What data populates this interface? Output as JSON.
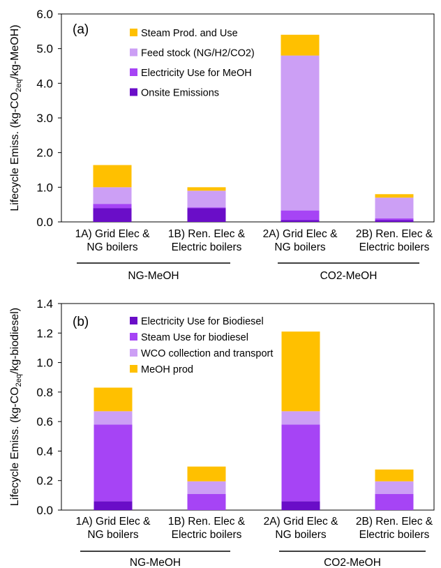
{
  "chart_data": [
    {
      "type": "bar",
      "stacked": true,
      "panel_label": "(a)",
      "ylabel_parts": [
        "Lifecycle Emiss. (kg-CO",
        "2eq",
        "/kg-MeOH)"
      ],
      "ylim": [
        0,
        6
      ],
      "yticks": [
        "0.0",
        "1.0",
        "2.0",
        "3.0",
        "4.0",
        "5.0",
        "6.0"
      ],
      "tick_step": 1,
      "grid": false,
      "legend_position": "top-left",
      "categories": [
        [
          "1A) Grid Elec &",
          "NG boilers"
        ],
        [
          "1B) Ren. Elec &",
          "Electric boilers"
        ],
        [
          "2A) Grid Elec &",
          "NG boilers"
        ],
        [
          "2B) Ren. Elec &",
          "Electric boilers"
        ]
      ],
      "groups": [
        {
          "label": "NG-MeOH",
          "categories": [
            0,
            1
          ]
        },
        {
          "label": "CO2-MeOH",
          "categories": [
            2,
            3
          ]
        }
      ],
      "series": [
        {
          "name": "Onsite Emissions",
          "color": "#6a0dc8",
          "values": [
            0.4,
            0.4,
            0.05,
            0.05
          ]
        },
        {
          "name": "Electricity Use for MeOH",
          "color": "#a644f5",
          "values": [
            0.12,
            0.02,
            0.28,
            0.05
          ]
        },
        {
          "name": "Feed stock (NG/H2/CO2)",
          "color": "#cc9ff5",
          "values": [
            0.48,
            0.48,
            4.47,
            0.6
          ]
        },
        {
          "name": "Steam Prod. and Use",
          "color": "#ffc000",
          "values": [
            0.64,
            0.1,
            0.6,
            0.1
          ]
        }
      ],
      "legend_order": [
        3,
        2,
        1,
        0
      ]
    },
    {
      "type": "bar",
      "stacked": true,
      "panel_label": "(b)",
      "ylabel_parts": [
        "Lifecycle Emiss. (kg-CO",
        "2eq",
        "/kg-biodiesel)"
      ],
      "ylim": [
        0,
        1.4
      ],
      "yticks": [
        "0.0",
        "0.2",
        "0.4",
        "0.6",
        "0.8",
        "1.0",
        "1.2",
        "1.4"
      ],
      "tick_step": 0.2,
      "grid": false,
      "legend_position": "top-left",
      "categories": [
        [
          "1A) Grid Elec &",
          "NG boilers"
        ],
        [
          "1B) Ren. Elec &",
          "Electric boilers"
        ],
        [
          "2A) Grid Elec &",
          "NG boilers"
        ],
        [
          "2B) Ren. Elec &",
          "Electric boilers"
        ]
      ],
      "groups": [
        {
          "label": "NG-MeOH",
          "categories": [
            0,
            1
          ]
        },
        {
          "label": "CO2-MeOH",
          "categories": [
            2,
            3
          ]
        }
      ],
      "series": [
        {
          "name": "Electricity Use for Biodiesel",
          "color": "#6a0dc8",
          "values": [
            0.06,
            0.0,
            0.06,
            0.0
          ]
        },
        {
          "name": "Steam Use for biodiesel",
          "color": "#a644f5",
          "values": [
            0.52,
            0.11,
            0.52,
            0.11
          ]
        },
        {
          "name": "WCO collection and transport",
          "color": "#cc9ff5",
          "values": [
            0.09,
            0.085,
            0.09,
            0.085
          ]
        },
        {
          "name": "MeOH prod",
          "color": "#ffc000",
          "values": [
            0.16,
            0.1,
            0.54,
            0.08
          ]
        }
      ],
      "legend_order": [
        0,
        1,
        2,
        3
      ]
    }
  ]
}
